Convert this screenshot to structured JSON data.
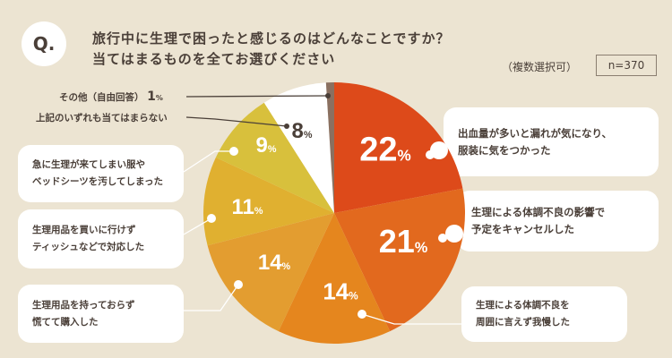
{
  "header": {
    "q": "Q.",
    "title_line1": "旅行中に生理で困ったと感じるのはどんなことですか？",
    "title_line2": "当てはまるものを全てお選びください",
    "multi": "（複数選択可）",
    "n": "n=370"
  },
  "chart_data": {
    "type": "pie",
    "title": "旅行中に生理で困ったと感じるのはどんなことですか？当てはまるものを全てお選びください",
    "unit": "%",
    "slices": [
      {
        "label": "出血量が多いと漏れが気になり、服装に気をつかった",
        "value": 22,
        "color": "#DD4A1A",
        "text": "22"
      },
      {
        "label": "生理による体調不良の影響で予定をキャンセルした",
        "value": 21,
        "color": "#E2691E",
        "text": "21"
      },
      {
        "label": "生理による体調不良を周囲に言えず我慢した",
        "value": 14,
        "color": "#E5861E",
        "text": "14"
      },
      {
        "label": "生理用品を持っておらず慌てて購入した",
        "value": 14,
        "color": "#E39D30",
        "text": "14"
      },
      {
        "label": "生理用品を買いに行けずティッシュなどで対応した",
        "value": 11,
        "color": "#E0B030",
        "text": "11"
      },
      {
        "label": "急に生理が来てしまい服やベッドシーツを汚してしまった",
        "value": 9,
        "color": "#D8C03C",
        "text": "9"
      },
      {
        "label": "上記のいずれも当てはまらない",
        "value": 8,
        "color": "#FFFFFF",
        "text": "8"
      },
      {
        "label": "その他（自由回答）",
        "value": 1,
        "color": "#8A7060",
        "text": "1"
      }
    ],
    "pct_sign": "%"
  },
  "callouts": {
    "c1a": "出血量が多いと漏れが気になり、",
    "c1b": "服装に気をつかった",
    "c2a": "生理による体調不良の影響で",
    "c2b": "予定をキャンセルした",
    "c3a": "生理による体調不良を",
    "c3b": "周囲に言えず我慢した",
    "c4a": "生理用品を持っておらず",
    "c4b": "慌てて購入した",
    "c5a": "生理用品を買いに行けず",
    "c5b": "ティッシュなどで対応した",
    "c6a": "急に生理が来てしまい服や",
    "c6b": "ベッドシーツを汚してしまった",
    "c7": "上記のいずれも当てはまらない",
    "c8": "その他（自由回答）",
    "c8pct": "1"
  }
}
